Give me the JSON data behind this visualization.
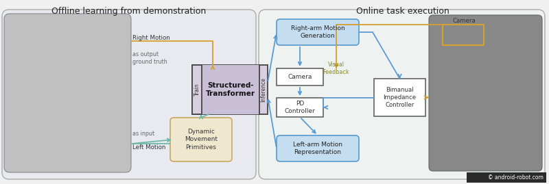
{
  "title_left": "Offline learning from demonstration",
  "title_right": "Online task execution",
  "bg_color": "#f0f0f0",
  "outer_left_bg": "#e8eaf0",
  "outer_right_bg": "#eef2f0",
  "transformer_bg": "#c9c0d8",
  "transformer_tab_bg": "#e0dce8",
  "dmp_bg": "#f0e8ce",
  "blue_box_bg": "#c5ddf0",
  "white_box_bg": "#ffffff",
  "arrow_blue": "#5b9bd5",
  "arrow_orange": "#d4a030",
  "arrow_teal": "#70b8a8",
  "copyright_text": "© android-robot.com",
  "labels": {
    "right_motion": "Right Motion",
    "as_output": "as output\nground truth",
    "left_motion": "Left Motion",
    "as_input": "as input",
    "train": "Train",
    "inference": "Inference",
    "structured_transformer": "Structured-\nTransformer",
    "dmp": "Dynamic\nMovement\nPrimitives",
    "right_arm_gen": "Right-arm Motion\nGeneration",
    "visual_feedback": "Visual\nFeedback",
    "camera_label": "Camera",
    "camera_box": "Camera",
    "pd_controller": "PD\nController",
    "bimanual": "Bimanual\nImpedance\nController",
    "left_arm_rep": "Left-arm Motion\nRepresentation"
  }
}
